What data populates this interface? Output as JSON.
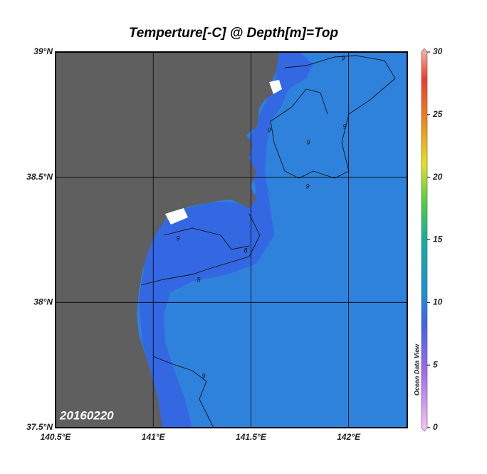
{
  "title": "Temperture[-C] @ Depth[m]=Top",
  "map": {
    "xlim": [
      140.5,
      142.3
    ],
    "ylim": [
      37.5,
      39.0
    ],
    "xticks": [
      {
        "value": 140.5,
        "label": "140.5°E"
      },
      {
        "value": 141,
        "label": "141°E"
      },
      {
        "value": 141.5,
        "label": "141.5°E"
      },
      {
        "value": 142,
        "label": "142°E"
      }
    ],
    "yticks": [
      {
        "value": 37.5,
        "label": "37.5°N"
      },
      {
        "value": 38,
        "label": "38°N"
      },
      {
        "value": 38.5,
        "label": "38.5°N"
      },
      {
        "value": 39,
        "label": "39°N"
      }
    ],
    "date": "20160220",
    "contour_labels": [
      "9",
      "9",
      "9",
      "9",
      "9",
      "8",
      "8",
      "9",
      "9"
    ]
  },
  "colorbar": {
    "lim": [
      0,
      30
    ],
    "ticks": [
      0,
      5,
      10,
      15,
      20,
      25,
      30
    ],
    "brand": "Ocean Data View"
  }
}
